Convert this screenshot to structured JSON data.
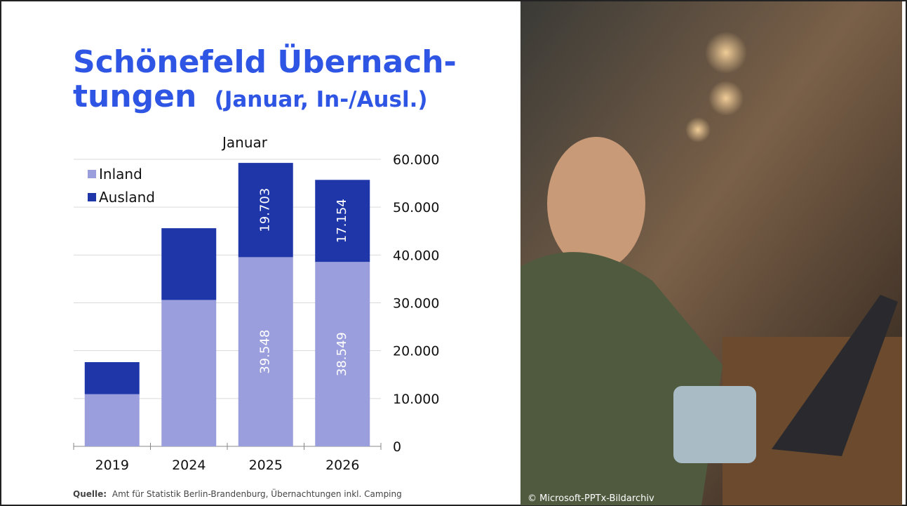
{
  "slide": {
    "title_lines": [
      "Schönefeld Übernach-",
      "tungen"
    ],
    "title_suffix": "(Januar, In-/Ausl.)",
    "source_label": "Quelle:",
    "source_text": "Amt für Statistik Berlin-Brandenburg, Übernachtungen inkl. Camping",
    "photo_credit": "© Microsoft-PPTx-Bildarchiv"
  },
  "chart_data": {
    "type": "stacked_bar",
    "title": "Januar",
    "categories": [
      "2019",
      "2024",
      "2025",
      "2026"
    ],
    "series": [
      {
        "name": "Inland",
        "color": "#9b9edd",
        "values": [
          10900,
          30600,
          39548,
          38549
        ],
        "value_labels": [
          null,
          null,
          "39.548",
          "38.549"
        ]
      },
      {
        "name": "Ausland",
        "color": "#1f36a9",
        "values": [
          6700,
          15000,
          19703,
          17154
        ],
        "value_labels": [
          null,
          null,
          "19.703",
          "17.154"
        ]
      }
    ],
    "ylim": [
      0,
      60000
    ],
    "yticks": [
      0,
      {
        "value": 10000,
        "label": "10.000"
      },
      {
        "value": 20000,
        "label": "20.000"
      },
      {
        "value": 30000,
        "label": "30.000"
      },
      {
        "value": 40000,
        "label": "40.000"
      },
      {
        "value": 50000,
        "label": "50.000"
      },
      {
        "value": 60000,
        "label": "60.000"
      }
    ],
    "grid": true,
    "legend": "top-left"
  }
}
